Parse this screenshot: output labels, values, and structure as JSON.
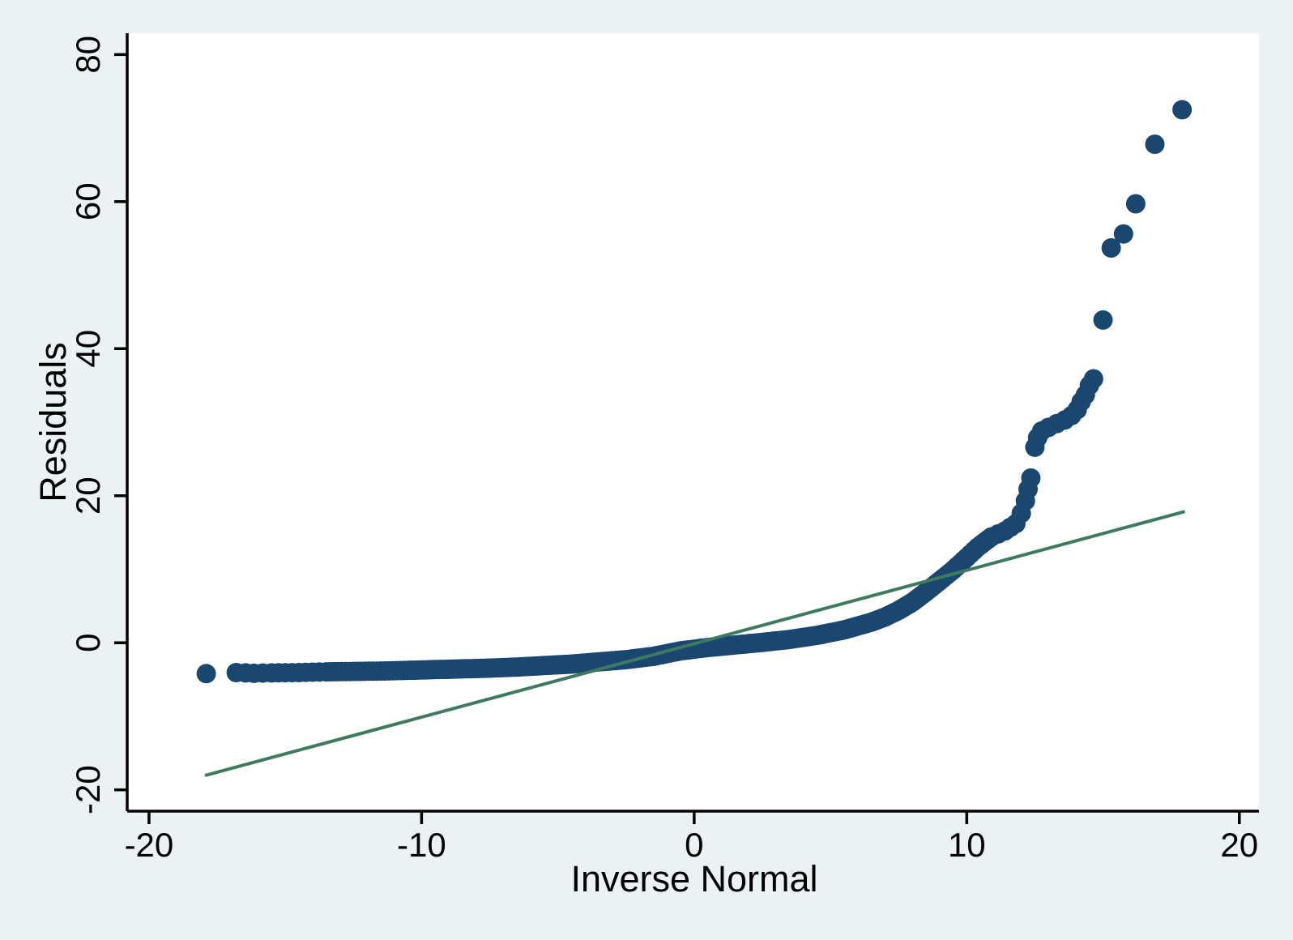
{
  "chart_data": {
    "type": "scatter",
    "subtype": "quantile-normal-plot",
    "title": "",
    "xlabel": "Inverse Normal",
    "ylabel": "Residuals",
    "xlim": [
      -20.8,
      20.72
    ],
    "ylim": [
      -22.9,
      82.9
    ],
    "grid": false,
    "legend": "none",
    "x_ticks": [
      {
        "value": -20,
        "label": "-20"
      },
      {
        "value": -10,
        "label": "-10"
      },
      {
        "value": 0,
        "label": "0"
      },
      {
        "value": 10,
        "label": "10"
      },
      {
        "value": 20,
        "label": "20"
      }
    ],
    "y_ticks": [
      {
        "value": -20,
        "label": "-20"
      },
      {
        "value": 0,
        "label": "0"
      },
      {
        "value": 20,
        "label": "20"
      },
      {
        "value": 40,
        "label": "40"
      },
      {
        "value": 60,
        "label": "60"
      },
      {
        "value": 80,
        "label": "80"
      }
    ],
    "colors": {
      "background": "#eaf2f3",
      "plot_background": "#ffffff",
      "axis": "#000000",
      "marker": "#1a476f",
      "reference_line": "#3d7a60"
    },
    "reference_line": {
      "x1": -17.9,
      "y1": -18.0,
      "x2": 17.95,
      "y2": 17.8
    },
    "dense_band_anchors": [
      [
        -16.15,
        -4.15
      ],
      [
        -15.5,
        -4.1
      ],
      [
        -14.5,
        -4.05
      ],
      [
        -13.5,
        -3.95
      ],
      [
        -12.5,
        -3.9
      ],
      [
        -11.5,
        -3.85
      ],
      [
        -10.5,
        -3.75
      ],
      [
        -9.5,
        -3.65
      ],
      [
        -8.5,
        -3.55
      ],
      [
        -7.5,
        -3.45
      ],
      [
        -6.5,
        -3.3
      ],
      [
        -5.5,
        -3.1
      ],
      [
        -4.5,
        -2.9
      ],
      [
        -3.5,
        -2.6
      ],
      [
        -2.5,
        -2.3
      ],
      [
        -1.5,
        -1.85
      ],
      [
        -0.5,
        -1.1
      ],
      [
        0.5,
        -0.65
      ],
      [
        1.5,
        -0.3
      ],
      [
        2.5,
        0.05
      ],
      [
        3.5,
        0.45
      ],
      [
        4.5,
        1.0
      ],
      [
        5.5,
        1.75
      ],
      [
        6.5,
        2.8
      ],
      [
        7.0,
        3.5
      ],
      [
        7.5,
        4.4
      ],
      [
        8.0,
        5.5
      ],
      [
        8.5,
        6.9
      ],
      [
        9.0,
        8.4
      ],
      [
        9.5,
        9.9
      ],
      [
        10.0,
        11.6
      ],
      [
        10.4,
        13.0
      ],
      [
        10.9,
        14.4
      ],
      [
        11.4,
        15.2
      ],
      [
        11.8,
        16.2
      ],
      [
        12.0,
        17.6
      ],
      [
        12.15,
        19.3
      ],
      [
        12.25,
        20.9
      ],
      [
        12.35,
        22.4
      ]
    ],
    "upper_cluster_anchors": [
      [
        12.5,
        26.6
      ],
      [
        12.6,
        27.9
      ],
      [
        12.75,
        28.8
      ],
      [
        13.0,
        29.3
      ],
      [
        13.3,
        29.8
      ],
      [
        13.6,
        30.3
      ],
      [
        13.85,
        30.9
      ],
      [
        14.05,
        31.7
      ],
      [
        14.2,
        32.8
      ],
      [
        14.35,
        33.7
      ],
      [
        14.5,
        35.0
      ],
      [
        14.65,
        35.9
      ]
    ],
    "isolated_points": [
      [
        -17.9,
        -4.2
      ],
      [
        -16.8,
        -4.05
      ],
      [
        -16.45,
        -4.1
      ],
      [
        15.0,
        43.9
      ],
      [
        15.3,
        53.7
      ],
      [
        15.75,
        55.6
      ],
      [
        16.2,
        59.7
      ],
      [
        16.9,
        67.8
      ],
      [
        17.9,
        72.5
      ]
    ],
    "band_point_spacing_px": [
      {
        "x_max": -15,
        "step": 12
      },
      {
        "x_max": -13,
        "step": 8
      },
      {
        "x_max": -10,
        "step": 5
      },
      {
        "x_max": 9,
        "step": 3.5
      },
      {
        "x_max": 11,
        "step": 6
      },
      {
        "x_max": 11.9,
        "step": 9
      },
      {
        "x_max": 99,
        "step": 11
      }
    ],
    "upper_cluster_spacing_px": 10
  }
}
